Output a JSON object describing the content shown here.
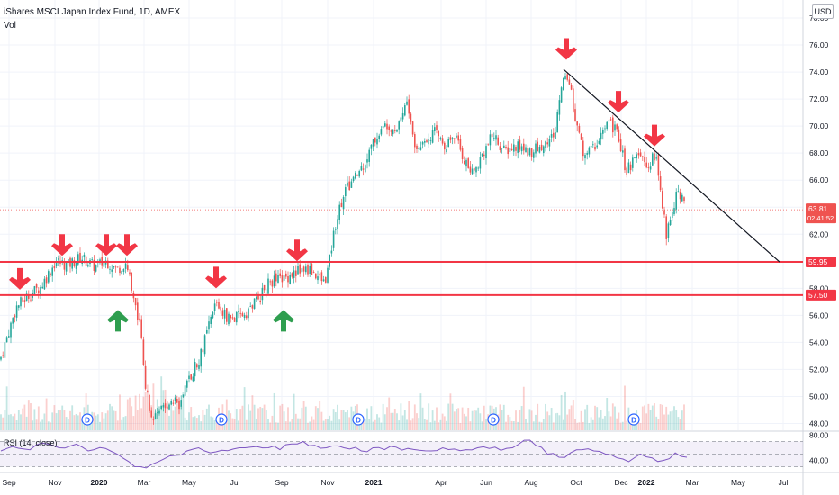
{
  "header": {
    "symbol": "iShares MSCI Japan Index Fund, 1D, AMEX",
    "volume_label": "Vol"
  },
  "currency_button": "USD",
  "rsi_label": "RSI (14, close)",
  "colors": {
    "up": "#26a69a",
    "down": "#ef5350",
    "support": "#f23645",
    "arrow_down": "#f23645",
    "arrow_up": "#2e9e4f",
    "trend": "#131722",
    "rsi": "#7e57c2"
  },
  "chart_data": [
    {
      "type": "candlestick",
      "title": "iShares MSCI Japan Index Fund, 1D, AMEX",
      "x_ticks": [
        "Sep",
        "Nov",
        "2020",
        "Mar",
        "May",
        "Jul",
        "Sep",
        "Nov",
        "2021",
        "Apr",
        "Jun",
        "Aug",
        "Oct",
        "Dec",
        "2022",
        "Mar",
        "May",
        "Jul"
      ],
      "y_ticks": [
        "78.00",
        "76.00",
        "74.00",
        "72.00",
        "70.00",
        "68.00",
        "66.00",
        "64.00",
        "62.00",
        "60.00",
        "58.00",
        "56.00",
        "54.00",
        "52.00",
        "50.00",
        "48.00"
      ],
      "ylim": [
        47.5,
        78.8
      ],
      "price_path": [
        [
          0,
          52.7
        ],
        [
          18,
          56.6
        ],
        [
          30,
          57.4
        ],
        [
          45,
          58.1
        ],
        [
          62,
          60.0
        ],
        [
          75,
          59.7
        ],
        [
          90,
          60.3
        ],
        [
          105,
          59.6
        ],
        [
          118,
          60.0
        ],
        [
          130,
          59.4
        ],
        [
          140,
          59.9
        ],
        [
          150,
          57.0
        ],
        [
          156,
          55.0
        ],
        [
          162,
          50.5
        ],
        [
          170,
          48.2
        ],
        [
          180,
          49.0
        ],
        [
          190,
          49.9
        ],
        [
          200,
          49.3
        ],
        [
          212,
          51.6
        ],
        [
          222,
          52.9
        ],
        [
          230,
          54.7
        ],
        [
          240,
          57.0
        ],
        [
          250,
          56.0
        ],
        [
          260,
          55.7
        ],
        [
          275,
          56.3
        ],
        [
          290,
          57.5
        ],
        [
          300,
          58.5
        ],
        [
          315,
          58.7
        ],
        [
          330,
          59.3
        ],
        [
          345,
          59.4
        ],
        [
          360,
          58.4
        ],
        [
          365,
          59.6
        ],
        [
          372,
          62.6
        ],
        [
          382,
          65.1
        ],
        [
          395,
          66.2
        ],
        [
          405,
          67.3
        ],
        [
          418,
          69.2
        ],
        [
          430,
          70.2
        ],
        [
          440,
          69.8
        ],
        [
          452,
          71.8
        ],
        [
          462,
          68.1
        ],
        [
          472,
          69.1
        ],
        [
          484,
          69.6
        ],
        [
          495,
          68.6
        ],
        [
          505,
          69.3
        ],
        [
          515,
          67.6
        ],
        [
          525,
          66.4
        ],
        [
          535,
          67.9
        ],
        [
          548,
          69.4
        ],
        [
          560,
          68.1
        ],
        [
          575,
          68.5
        ],
        [
          590,
          68.1
        ],
        [
          605,
          68.6
        ],
        [
          617,
          69.5
        ],
        [
          622,
          72.5
        ],
        [
          628,
          74.0
        ],
        [
          632,
          73.3
        ],
        [
          640,
          70.3
        ],
        [
          648,
          68.0
        ],
        [
          660,
          68.4
        ],
        [
          668,
          69.5
        ],
        [
          678,
          70.3
        ],
        [
          688,
          69.1
        ],
        [
          695,
          66.7
        ],
        [
          705,
          67.4
        ],
        [
          712,
          67.7
        ],
        [
          720,
          66.9
        ],
        [
          728,
          68.0
        ],
        [
          733,
          65.5
        ],
        [
          740,
          62.0
        ],
        [
          746,
          63.5
        ],
        [
          752,
          65.2
        ],
        [
          758,
          64.5
        ],
        [
          762,
          63.8
        ]
      ],
      "last_price": "63.81",
      "countdown": "02:41:52",
      "levels": [
        {
          "label": "59.95",
          "value": 59.95
        },
        {
          "label": "57.50",
          "value": 57.5
        }
      ],
      "trendline": [
        [
          626,
          74.2
        ],
        [
          866,
          59.95
        ]
      ],
      "markers": [
        {
          "dir": "down",
          "x": 22,
          "value": 57.9
        },
        {
          "dir": "down",
          "x": 69,
          "value": 60.4
        },
        {
          "dir": "down",
          "x": 118,
          "value": 60.4
        },
        {
          "dir": "down",
          "x": 141,
          "value": 60.4
        },
        {
          "dir": "down",
          "x": 240,
          "value": 58.0
        },
        {
          "dir": "down",
          "x": 330,
          "value": 60.0
        },
        {
          "dir": "down",
          "x": 629,
          "value": 74.9
        },
        {
          "dir": "down",
          "x": 687,
          "value": 71.0
        },
        {
          "dir": "down",
          "x": 727,
          "value": 68.5
        },
        {
          "dir": "up",
          "x": 131,
          "value": 56.4
        },
        {
          "dir": "up",
          "x": 315,
          "value": 56.4
        }
      ],
      "dividend_markers": [
        {
          "label": "D",
          "x": 97
        },
        {
          "label": "D",
          "x": 246
        },
        {
          "label": "D",
          "x": 398
        },
        {
          "label": "D",
          "x": 548
        },
        {
          "label": "D",
          "x": 704
        }
      ]
    },
    {
      "type": "line",
      "title": "RSI (14, close)",
      "y_ticks": [
        "80.00",
        "40.00"
      ],
      "ylim": [
        25,
        85
      ],
      "bands": [
        30,
        50,
        70
      ],
      "values": [
        55,
        62,
        58,
        64,
        66,
        60,
        63,
        61,
        57,
        59,
        50,
        38,
        30,
        34,
        42,
        48,
        55,
        60,
        52,
        56,
        58,
        60,
        62,
        60,
        57,
        66,
        70,
        64,
        60,
        63,
        58,
        55,
        60,
        57,
        61,
        59,
        56,
        55,
        60,
        58,
        57,
        60,
        59,
        56,
        60,
        72,
        64,
        50,
        45,
        52,
        57,
        55,
        50,
        44,
        38,
        50,
        44,
        40,
        52,
        45
      ]
    }
  ]
}
